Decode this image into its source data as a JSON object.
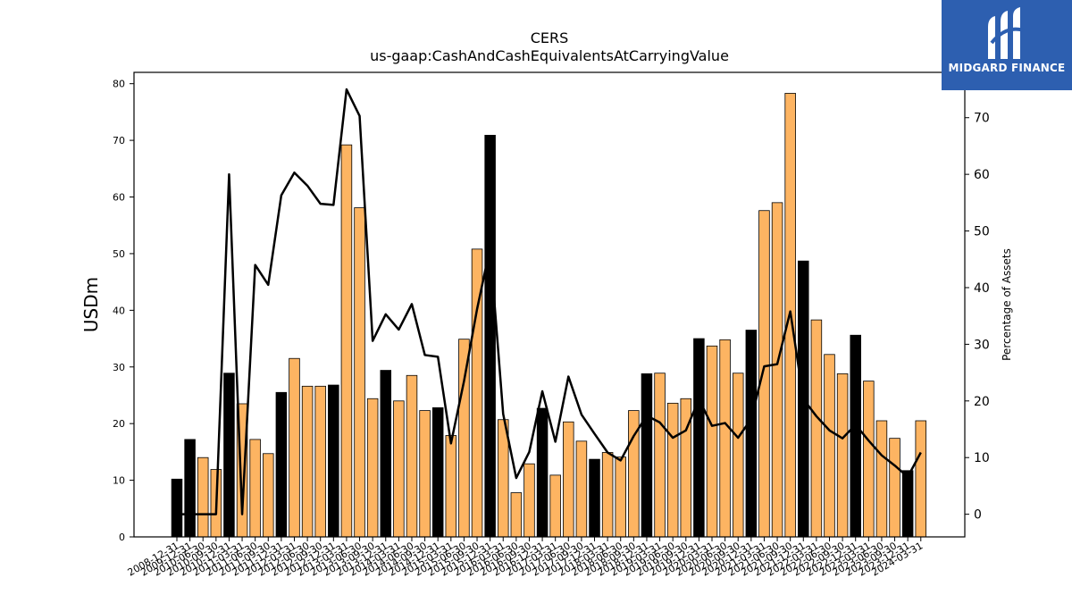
{
  "logo": {
    "name": "MIDGARD FINANCE",
    "icon": "midgard-logo-icon",
    "bg": "#2d5fb0"
  },
  "chart_data": {
    "type": "bar",
    "title": "CERS",
    "subtitle": "us-gaap:CashAndCashEquivalentsAtCarryingValue",
    "ylabel": "USDm",
    "y2label": "Percentage of Assets",
    "ylim": [
      0,
      82
    ],
    "y2lim": [
      -4,
      78
    ],
    "yticks": [
      0,
      10,
      20,
      30,
      40,
      50,
      60,
      70,
      80
    ],
    "y2ticks": [
      0,
      10,
      20,
      30,
      40,
      50,
      60,
      70
    ],
    "grid": false,
    "colors": {
      "q4_bar": "#000000",
      "other_bar": "#fdb462",
      "line": "#000000"
    },
    "categories": [
      "2008-12-31",
      "2009-12-31",
      "2010-06-30",
      "2010-09-30",
      "2010-12-31",
      "2011-03-31",
      "2011-06-30",
      "2011-09-30",
      "2011-12-31",
      "2012-03-31",
      "2012-06-30",
      "2012-09-30",
      "2012-12-31",
      "2013-03-31",
      "2013-06-30",
      "2013-09-30",
      "2013-12-31",
      "2014-03-31",
      "2014-06-30",
      "2014-09-30",
      "2014-12-31",
      "2015-03-31",
      "2015-06-30",
      "2015-09-30",
      "2015-12-31",
      "2016-03-31",
      "2016-06-30",
      "2016-09-30",
      "2016-12-31",
      "2017-03-31",
      "2017-06-30",
      "2017-09-30",
      "2017-12-31",
      "2018-03-31",
      "2018-06-30",
      "2018-09-30",
      "2018-12-31",
      "2019-03-31",
      "2019-06-30",
      "2019-09-30",
      "2019-12-31",
      "2020-03-31",
      "2020-06-30",
      "2020-09-30",
      "2020-12-31",
      "2021-03-31",
      "2021-06-30",
      "2021-09-30",
      "2021-12-31",
      "2022-03-31",
      "2022-06-30",
      "2022-09-30",
      "2022-12-31",
      "2023-03-31",
      "2023-06-30",
      "2023-09-30",
      "2023-12-31",
      "2024-03-31"
    ],
    "series": [
      {
        "values": [
          10.2,
          17.2,
          14.0,
          11.9,
          28.9,
          23.5,
          17.2,
          14.7,
          25.5,
          31.5,
          26.6,
          26.6,
          26.8,
          69.2,
          58.1,
          24.4,
          29.4,
          24.0,
          28.5,
          22.3,
          22.8,
          17.9,
          34.9,
          50.8,
          70.9,
          20.7,
          7.8,
          12.9,
          22.7,
          10.9,
          20.3,
          16.9,
          13.7,
          14.9,
          14.1,
          22.3,
          28.8,
          28.9,
          23.6,
          24.4,
          35.0,
          33.7,
          34.8,
          28.9,
          36.5,
          57.6,
          59.0,
          78.3,
          48.7,
          38.3,
          32.2,
          28.8,
          35.6,
          27.5,
          20.5,
          17.4,
          11.7,
          20.5
        ]
      },
      {
        "values": [
          0,
          0,
          0,
          0,
          60,
          0,
          44,
          40.5,
          56.3,
          60.3,
          58,
          54.8,
          54.6,
          75,
          70.3,
          30.6,
          35.3,
          32.6,
          37.1,
          28.1,
          27.8,
          12.5,
          23.5,
          36.2,
          47.1,
          17.7,
          6.4,
          11,
          21.7,
          12.8,
          24.3,
          17.6,
          14.2,
          10.9,
          9.5,
          13.8,
          17.4,
          16.2,
          13.5,
          14.8,
          20.3,
          15.6,
          16.1,
          13.5,
          16.8,
          26.1,
          26.5,
          35.8,
          20.3,
          17.3,
          14.8,
          13.4,
          15.8,
          13,
          10.4,
          8.6,
          6.6,
          10.9
        ]
      }
    ]
  }
}
